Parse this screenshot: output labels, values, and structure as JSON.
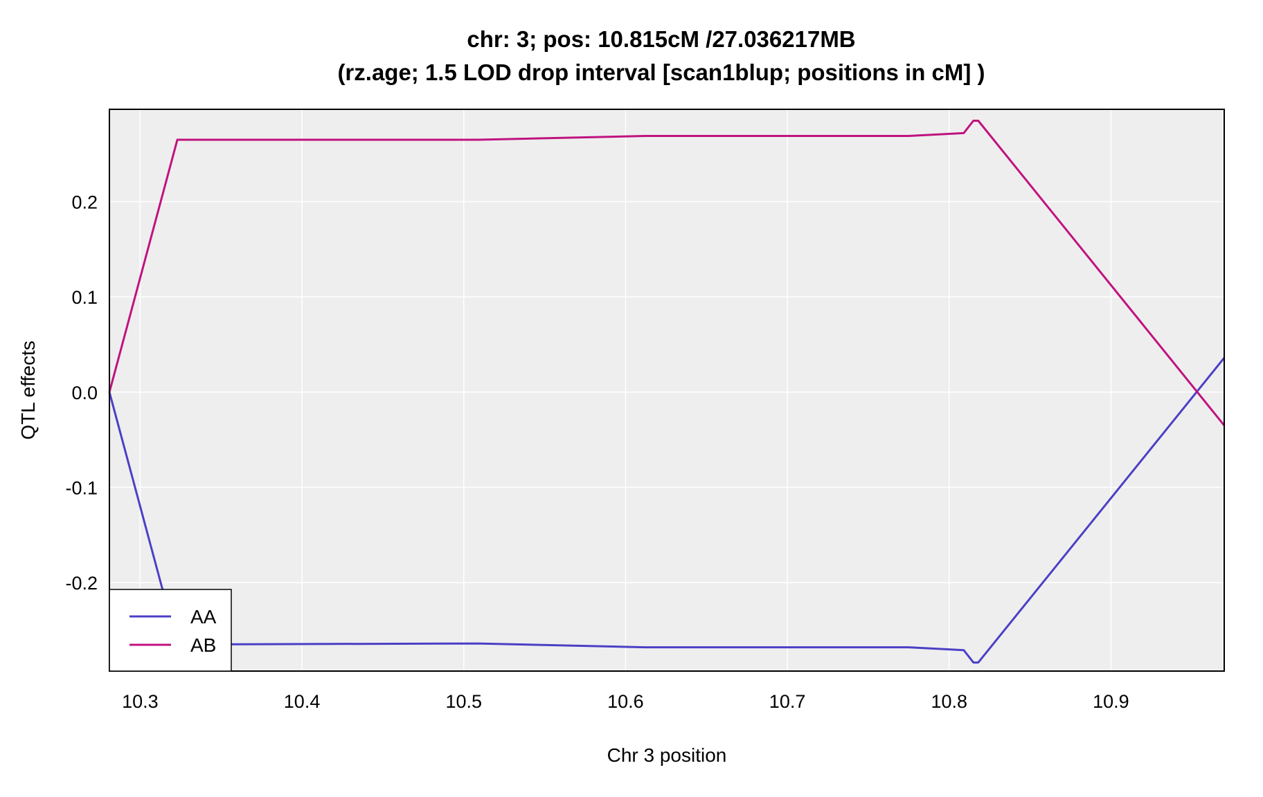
{
  "chart_data": {
    "type": "line",
    "title_line1": "chr: 3; pos: 10.815cM /27.036217MB",
    "title_line2": "(rz.age; 1.5 LOD drop interval [scan1blup; positions in cM] )",
    "xlabel": "Chr 3 position",
    "ylabel": "QTL effects",
    "xlim": [
      10.281,
      10.97
    ],
    "ylim": [
      -0.293,
      0.297
    ],
    "xticks": [
      10.3,
      10.4,
      10.5,
      10.6,
      10.7,
      10.8,
      10.9
    ],
    "xtick_labels": [
      "10.3",
      "10.4",
      "10.5",
      "10.6",
      "10.7",
      "10.8",
      "10.9"
    ],
    "yticks": [
      -0.2,
      -0.1,
      0.0,
      0.1,
      0.2
    ],
    "ytick_labels": [
      "-0.2",
      "-0.1",
      "0.0",
      "0.1",
      "0.2"
    ],
    "grid": true,
    "legend_position": "bottom-left",
    "background": "#eeeeee",
    "gridline_color": "#ffffff",
    "series": [
      {
        "name": "AA",
        "color": "#4b3fc6",
        "x": [
          10.281,
          10.323,
          10.509,
          10.612,
          10.775,
          10.809,
          10.815,
          10.818,
          10.97
        ],
        "y": [
          0.0,
          -0.265,
          -0.264,
          -0.268,
          -0.268,
          -0.271,
          -0.284,
          -0.284,
          0.036
        ]
      },
      {
        "name": "AB",
        "color": "#c0127f",
        "x": [
          10.281,
          10.323,
          10.509,
          10.612,
          10.775,
          10.809,
          10.815,
          10.818,
          10.97
        ],
        "y": [
          0.0,
          0.265,
          0.265,
          0.269,
          0.269,
          0.272,
          0.285,
          0.285,
          -0.035
        ]
      }
    ]
  }
}
